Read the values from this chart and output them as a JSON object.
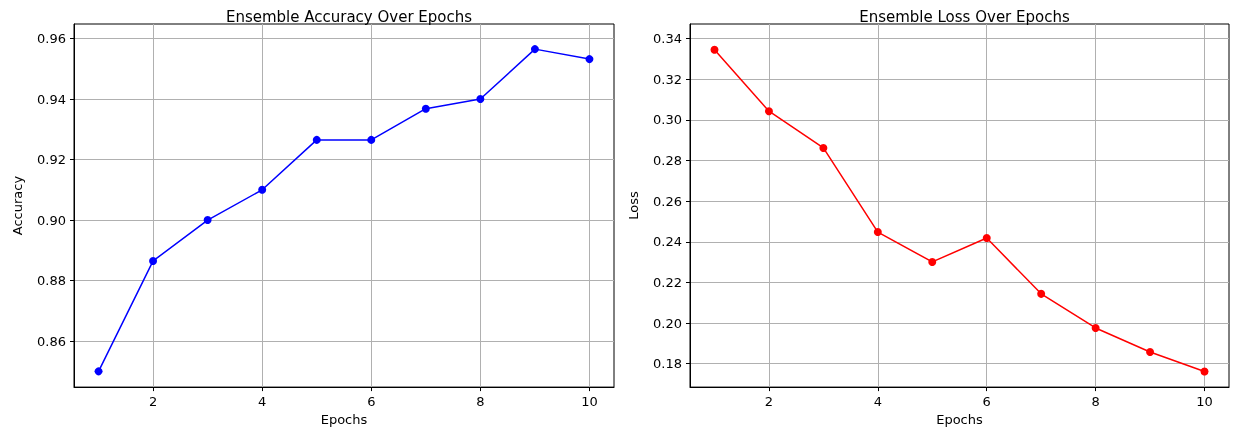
{
  "chart_data": [
    {
      "type": "line",
      "title": "Ensemble Accuracy Over Epochs",
      "xlabel": "Epochs",
      "ylabel": "Accuracy",
      "x": [
        1,
        2,
        3,
        4,
        5,
        6,
        7,
        8,
        9,
        10
      ],
      "series": [
        {
          "color": "#0000ff",
          "values": [
            0.85,
            0.8865,
            0.9,
            0.91,
            0.9265,
            0.9265,
            0.9368,
            0.94,
            0.9565,
            0.9532
          ]
        }
      ],
      "xlim": [
        0.55,
        10.45
      ],
      "xticks": [
        2,
        4,
        6,
        8,
        10
      ],
      "ylim": [
        0.8448,
        0.9648
      ],
      "yticks": [
        0.86,
        0.88,
        {
          "value": 0.9,
          "label": "0.90"
        },
        0.92,
        0.94,
        0.96
      ],
      "grid": true,
      "marker": "circle",
      "line_style": "solid"
    },
    {
      "type": "line",
      "title": "Ensemble Loss Over Epochs",
      "xlabel": "Epochs",
      "ylabel": "Loss",
      "x": [
        1,
        2,
        3,
        4,
        5,
        6,
        7,
        8,
        9,
        10
      ],
      "series": [
        {
          "color": "#ff0000",
          "values": [
            0.3345,
            0.3043,
            0.2862,
            0.2448,
            0.2301,
            0.2419,
            0.2144,
            0.1976,
            0.1858,
            0.1762
          ]
        }
      ],
      "xlim": [
        0.55,
        10.45
      ],
      "xticks": [
        2,
        4,
        6,
        8,
        10
      ],
      "ylim": [
        0.1685,
        0.3472
      ],
      "yticks": [
        0.18,
        {
          "value": 0.2,
          "label": "0.20"
        },
        0.22,
        0.24,
        0.26,
        0.28,
        {
          "value": 0.3,
          "label": "0.30"
        },
        0.32,
        0.34
      ],
      "grid": true,
      "marker": "circle",
      "line_style": "solid"
    }
  ]
}
